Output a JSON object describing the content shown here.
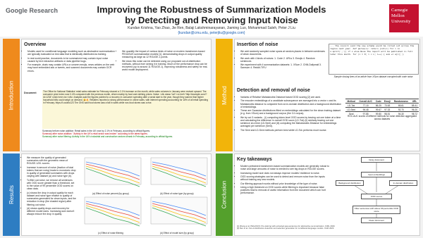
{
  "header": {
    "logo_left": "Google Research",
    "title_line1": "Improving the Robustness of Summarization Models",
    "title_line2": "by Detecting and Removing Input Noise",
    "authors": "Kundan Krishna, Yao Zhao, Jie Ren, Balaji Lakshminarayanan, Jiaming Luo, Mohammad Saleh, Peter J Liu",
    "emails": "{kundan@cmu.edu, peterjliu@google.com}",
    "logo_right": [
      "Carnegie",
      "Mellon",
      "University"
    ]
  },
  "introduction": {
    "label": "Introduction",
    "heading": "Overview",
    "col1": [
      "Models used for conditional language modeling such as abstractive summarization are typically evaluated on test data that is identically distributed as training.",
      "In real world practice, documents to be summarized may contain input noise caused by text extraction artifacts or data pipeline bugs.",
      "For example, chats may contain URLs or unseen emojis, news articles on the web may have embedded ads or tweets, and scanned documents may contain OCR errors."
    ],
    "col2": [
      "We quantify the impact of various kinds of noise on modern transformer-based PEGASUS summarization models [1], demonstrating drops in output quality measuring as large as 12 ROUGE-1 points.",
      "We show this noise can be detected using our proposed out-of-distribution methods, without ever seeing it in training. Much of the performance drop can be recovered (up to around 11 ROUGE-1), improving robustness and safety for real-world model deployment."
    ],
    "document_label": "Document",
    "document_text": "The Office for National Statistics' retail sales estimate for February showed a 2.1% increase on the month, while sales volumes in January were revised upward. The consumer price index rose 0.4% compared with the previous month, driven mainly by food and clothing prices. Noise: <div class=\"ad\"><a href=\"http://example.com/?id=1234\">click here</a></div> Analysts said the figures pointed to a recovery in consumer spending after a weak start to the year, though they warned that higher household bills could weigh on demand. 😀🔥 Retailers reported a strong performance in online sales, with internet spending accounting for 18% of all retail spending in February. https://t.co/abc123 The ONS said food stores saw a fall in sales while non-food stores saw a rise.",
    "summaries": [
      "Summary before noise addition: Retail sales in the UK rose by 2.1% in February, according to official figures.",
      "Summary after noise addition: \"Activity in the UK's retail sector was broken\" according to the latest figures.",
      "Summary after noise filtering: Activity in the UK's industrial and construction sectors shrank in February, according to official figures."
    ]
  },
  "results": {
    "label": "Results",
    "bullets": [
      "We measure the quality of generated summaries with the geometric mean of ROUGE-1/2/L scores.",
      "Increase in amount of noise (fraction of total tokens that are noisy) leads to monotonic drop in quality of generated summaries with drops varying with dataset (a) and noise type (b).",
      "To filter out noise, we remove all sentences with OOD score greater than a threshold, set to the value of 99 percentile OOD scores on clean data.",
      "(c) shows the drop in output quality for each dataset and noise type relative to quality of summaries generated for clean inputs, and the reduction in drop (the shaded region) after filtering out noise.",
      "(d) shows quality drops and recovery for different model sizes. Increasing size doesn't always reduce the drop in quality."
    ],
    "figures": [
      "(a) Effect of noise percent (by group)",
      "(b) Effect of noise type (by group)",
      "(c) Effect of noise filtering",
      "(d) Effect of model size (by group)"
    ]
  },
  "method": {
    "label": "Method",
    "insertion": {
      "heading": "Insertion of noise",
      "bullets": [
        "We add randomly sampled noise spans at random places in between sentences of clean documents.",
        "We work with 4 kinds of noises: 1. Code 2. URLs 3. Emojis 4. Random sentences",
        "We experiment with 4 summarization datasets: 1. XSum 2. CNN-Dailymail 3. Samsum 4. Reddit-TIFU"
      ],
      "example": "... the council said the new scheme would be rolled out across the region next year. def parse(x): return [int(i) for i in x.split(',')] if x else None The report will be published in full later this month. for (i = 0; i < n; i++) { sum += a[i]; }",
      "caption": "Sample closing lines of an article from XSum dataset corrupted with code noise."
    },
    "detection": {
      "heading": "Detection and removal of noise",
      "bullets": [
        "Variants of Relative Mahalanobis Distance based OOD scoring [2] are used.",
        "The encoder embeddings of a candidate subsequence are averaged into a vector x and its Mahalanobis distance is computed from an in-domain distribution and a background distribution of embeddings.",
        "These are Gaussian distributions fitted on embeddings calculated for the clean training dataset (e.g. from XSum) and a background corpus (the C4 corpus).",
        "We try out 3 variants - (i) computing token-level OOD scores by leaving out one token at a time and calculating the difference in overall OOD score (LD-Tok) (ii) similarly leaving out one sentence at a time (LD-Sent) and (iii) computing the Mahalanobis Distance for embeddings averaged per sentence (Sent).",
        "The Sent and LD-Sent methods perform best while LD-Tok performs much worse."
      ],
      "table": {
        "headers": [
          "Method",
          "Overall AUC",
          "Code",
          "Emoji",
          "Randomness",
          "URL"
        ],
        "rows": [
          [
            "LD-Tok",
            "77.10",
            "86.25",
            "73.63",
            "65.61",
            "85.41"
          ],
          [
            "LD-Sent",
            "96.48",
            "99.67",
            "97.33",
            "92.70",
            "96.20"
          ],
          [
            "Sent",
            "97.85",
            "99.80",
            "98.51",
            "94.30",
            "98.72"
          ]
        ]
      },
      "table_caption": "ROC-AUC scores of different methods for noise detection aggregated across datasets"
    }
  },
  "conclusion": {
    "label": "Conclusion",
    "heading": "Key takeaways",
    "bullets": [
      "Modern pretrained transformer-based summarization models are generally robust to noise and large amounts of noise is needed to see big drops in ROUGE scores.",
      "Increasing model size does not always improve models' resilience to noise.",
      "OOD scoring strategies can be used to detect and remove noise from the inputs without training any new models.",
      "Our filtering approach works without prior knowledge of the type of noise.",
      "Using a high threshold on OOD scores while filtering is important because false positives lead to removal of useful information from the document which can hurt performance."
    ],
    "diagram": {
      "noisy": "Noisy document",
      "embeddings": "Input embeddings",
      "background": "Background distribution",
      "indomain": "In-domain distribution",
      "scores": "OOD scores",
      "filter": "Filter sentences with above 99 percentile OOD score",
      "clean": "Clean document"
    },
    "references": [
      "[1] Zhang et al. PEGASUS: Pre-training with extracted gap-sentences for abstractive summarization. ICML 2020.",
      "[2] Ren et al. Out-of-distribution detection and selective generation for conditional language models. ICLR 2023."
    ]
  }
}
